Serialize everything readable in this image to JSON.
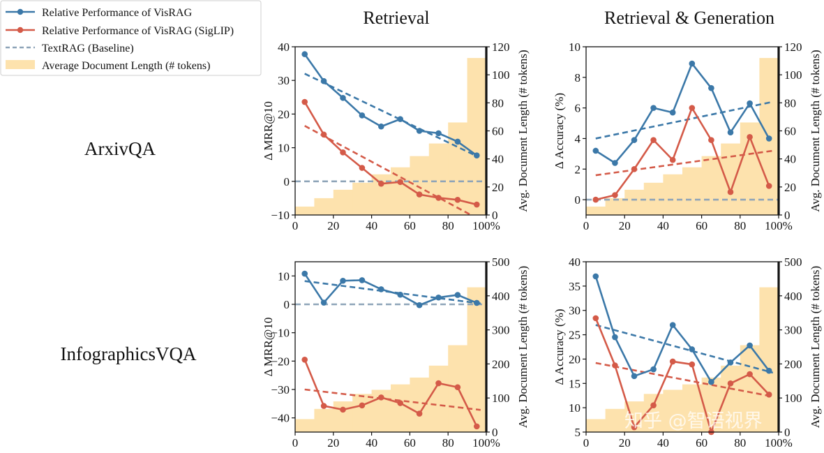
{
  "colors": {
    "visrag": "#3b78a8",
    "siglip": "#d45a48",
    "baseline": "#8ea4b8",
    "bars": "#fde2ad",
    "overlap": "#e07b2f"
  },
  "col_titles": [
    "Retrieval",
    "Retrieval & Generation"
  ],
  "row_labels": [
    "ArxivQA",
    "InfographicsVQA"
  ],
  "legend": [
    {
      "label": "Relative Performance of VisRAG",
      "kind": "line-marker",
      "color_key": "visrag"
    },
    {
      "label": "Relative Performance of VisRAG (SigLIP)",
      "kind": "line-marker",
      "color_key": "siglip"
    },
    {
      "label": "TextRAG (Baseline)",
      "kind": "dashed",
      "color_key": "baseline"
    },
    {
      "label": "Average Document Length (# tokens)",
      "kind": "patch",
      "color_key": "bars"
    }
  ],
  "watermark": "知乎 @智语视界",
  "chart_data": [
    {
      "type": "line",
      "row": "ArxivQA",
      "column": "Retrieval",
      "x": [
        5,
        15,
        25,
        35,
        45,
        55,
        65,
        75,
        85,
        95
      ],
      "xlim": [
        0,
        100
      ],
      "xticks": [
        "0",
        "20",
        "40",
        "60",
        "80",
        "100%"
      ],
      "ylabel": "Δ MRR@10",
      "ylim": [
        -10,
        40
      ],
      "yticks": [
        -10,
        0,
        10,
        20,
        30,
        40
      ],
      "y2label": "Avg. Document Length (# tokens)",
      "y2lim": [
        0,
        120
      ],
      "y2ticks": [
        0,
        20,
        40,
        60,
        80,
        100,
        120
      ],
      "series": [
        {
          "name": "Relative Performance of VisRAG",
          "values": [
            37.8,
            29.8,
            24.8,
            19.6,
            16.3,
            18.5,
            15.0,
            14.3,
            11.8,
            7.7
          ]
        },
        {
          "name": "Relative Performance of VisRAG (SigLIP)",
          "values": [
            23.6,
            13.9,
            8.6,
            4.0,
            -0.7,
            -0.2,
            -3.9,
            -4.9,
            -5.5,
            -6.9
          ]
        }
      ],
      "trends": [
        {
          "name": "VisRAG trend",
          "x": [
            5,
            95
          ],
          "y": [
            32.0,
            7.5
          ]
        },
        {
          "name": "VisRAG (SigLIP) trend",
          "x": [
            5,
            92
          ],
          "y": [
            16.5,
            -10.0
          ]
        }
      ],
      "baseline": 0,
      "bars": [
        6,
        12,
        18,
        23,
        29,
        34,
        42,
        51,
        66,
        112
      ]
    },
    {
      "type": "line",
      "row": "ArxivQA",
      "column": "Retrieval & Generation",
      "x": [
        5,
        15,
        25,
        35,
        45,
        55,
        65,
        75,
        85,
        95
      ],
      "xlim": [
        0,
        100
      ],
      "xticks": [
        "0",
        "20",
        "40",
        "60",
        "80",
        "100%"
      ],
      "ylabel": "Δ Accuracy (%)",
      "ylim": [
        -1,
        10
      ],
      "yticks": [
        0,
        2,
        4,
        6,
        8,
        10
      ],
      "y2label": "Avg. Document Length (# tokens)",
      "y2lim": [
        0,
        120
      ],
      "y2ticks": [
        0,
        20,
        40,
        60,
        80,
        100,
        120
      ],
      "series": [
        {
          "name": "Relative Performance of VisRAG",
          "values": [
            3.2,
            2.4,
            3.9,
            6.0,
            5.7,
            8.9,
            7.3,
            4.4,
            6.3,
            4.0
          ]
        },
        {
          "name": "Relative Performance of VisRAG (SigLIP)",
          "values": [
            0.0,
            0.3,
            2.0,
            3.9,
            2.6,
            6.0,
            3.9,
            0.5,
            4.1,
            0.9
          ]
        }
      ],
      "trends": [
        {
          "name": "VisRAG trend",
          "x": [
            5,
            97
          ],
          "y": [
            4.0,
            6.4
          ]
        },
        {
          "name": "VisRAG (SigLIP) trend",
          "x": [
            5,
            97
          ],
          "y": [
            1.6,
            3.2
          ]
        }
      ],
      "baseline": 0,
      "bars": [
        6,
        12,
        18,
        23,
        29,
        34,
        42,
        51,
        66,
        112
      ]
    },
    {
      "type": "line",
      "row": "InfographicsVQA",
      "column": "Retrieval",
      "x": [
        5,
        15,
        25,
        35,
        45,
        55,
        65,
        75,
        85,
        95
      ],
      "xlim": [
        0,
        100
      ],
      "xticks": [
        "0",
        "20",
        "40",
        "60",
        "80",
        "100%"
      ],
      "ylabel": "Δ MRR@10",
      "ylim": [
        -45,
        15
      ],
      "yticks": [
        -40,
        -30,
        -20,
        -10,
        0,
        10
      ],
      "y2label": "Avg. Document Length (# tokens)",
      "y2lim": [
        0,
        500
      ],
      "y2ticks": [
        0,
        100,
        200,
        300,
        400,
        500
      ],
      "series": [
        {
          "name": "Relative Performance of VisRAG",
          "values": [
            10.8,
            0.6,
            8.3,
            8.5,
            5.3,
            3.4,
            -0.3,
            2.4,
            3.3,
            0.5
          ]
        },
        {
          "name": "Relative Performance of VisRAG (SigLIP)",
          "values": [
            -19.5,
            -35.8,
            -37.1,
            -35.6,
            -32.8,
            -34.8,
            -38.5,
            -27.8,
            -29.2,
            -43.0
          ]
        }
      ],
      "trends": [
        {
          "name": "VisRAG trend",
          "x": [
            5,
            97
          ],
          "y": [
            8.2,
            0.3
          ]
        },
        {
          "name": "VisRAG (SigLIP) trend",
          "x": [
            5,
            97
          ],
          "y": [
            -30.0,
            -37.2
          ]
        }
      ],
      "baseline": 0,
      "bars": [
        38,
        68,
        90,
        112,
        124,
        140,
        160,
        195,
        255,
        425
      ]
    },
    {
      "type": "line",
      "row": "InfographicsVQA",
      "column": "Retrieval & Generation",
      "x": [
        5,
        15,
        25,
        35,
        45,
        55,
        65,
        75,
        85,
        95
      ],
      "xlim": [
        0,
        100
      ],
      "xticks": [
        "0",
        "20",
        "40",
        "60",
        "80",
        "100%"
      ],
      "ylabel": "Δ Accuracy (%)",
      "ylim": [
        5,
        40
      ],
      "yticks": [
        5,
        10,
        15,
        20,
        25,
        30,
        35,
        40
      ],
      "y2label": "Avg. Document Length (# tokens)",
      "y2lim": [
        0,
        500
      ],
      "y2ticks": [
        0,
        100,
        200,
        300,
        400,
        500
      ],
      "series": [
        {
          "name": "Relative Performance of VisRAG",
          "values": [
            37.0,
            24.5,
            16.5,
            17.9,
            27.0,
            22.0,
            15.3,
            19.3,
            22.8,
            17.6
          ]
        },
        {
          "name": "Relative Performance of VisRAG (SigLIP)",
          "values": [
            28.4,
            18.7,
            6.0,
            10.5,
            19.5,
            18.9,
            5.0,
            15.0,
            16.9,
            12.7
          ]
        }
      ],
      "trends": [
        {
          "name": "VisRAG trend",
          "x": [
            5,
            97
          ],
          "y": [
            27.0,
            17.2
          ]
        },
        {
          "name": "VisRAG (SigLIP) trend",
          "x": [
            5,
            97
          ],
          "y": [
            19.2,
            12.3
          ]
        }
      ],
      "baseline": 0,
      "bars": [
        38,
        68,
        90,
        112,
        124,
        140,
        160,
        195,
        255,
        425
      ]
    }
  ]
}
